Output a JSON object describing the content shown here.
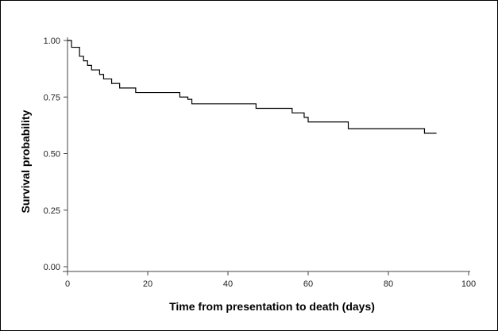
{
  "chart_data": {
    "type": "line",
    "title": "",
    "xlabel": "Time from presentation to death (days)",
    "ylabel": "Survival probability",
    "xlim": [
      0,
      100
    ],
    "ylim": [
      0,
      1
    ],
    "x_ticks": [
      0,
      20,
      40,
      60,
      80,
      100
    ],
    "y_ticks": [
      0.0,
      0.25,
      0.5,
      0.75,
      1.0
    ],
    "x_tick_labels": [
      "0",
      "20",
      "40",
      "60",
      "80",
      "100"
    ],
    "y_tick_labels": [
      "0.00",
      "0.25",
      "0.50",
      "0.75",
      "1.00"
    ],
    "grid": false,
    "step": true,
    "series": [
      {
        "x": [
          0,
          1,
          3,
          4,
          5,
          6,
          8,
          9,
          11,
          13,
          17,
          28,
          30,
          31,
          47,
          56,
          59,
          60,
          70,
          89,
          92
        ],
        "y": [
          1.0,
          0.97,
          0.93,
          0.91,
          0.89,
          0.87,
          0.85,
          0.83,
          0.81,
          0.79,
          0.77,
          0.75,
          0.74,
          0.72,
          0.7,
          0.68,
          0.66,
          0.64,
          0.61,
          0.59,
          0.59
        ]
      }
    ],
    "line_color": "#000000"
  }
}
